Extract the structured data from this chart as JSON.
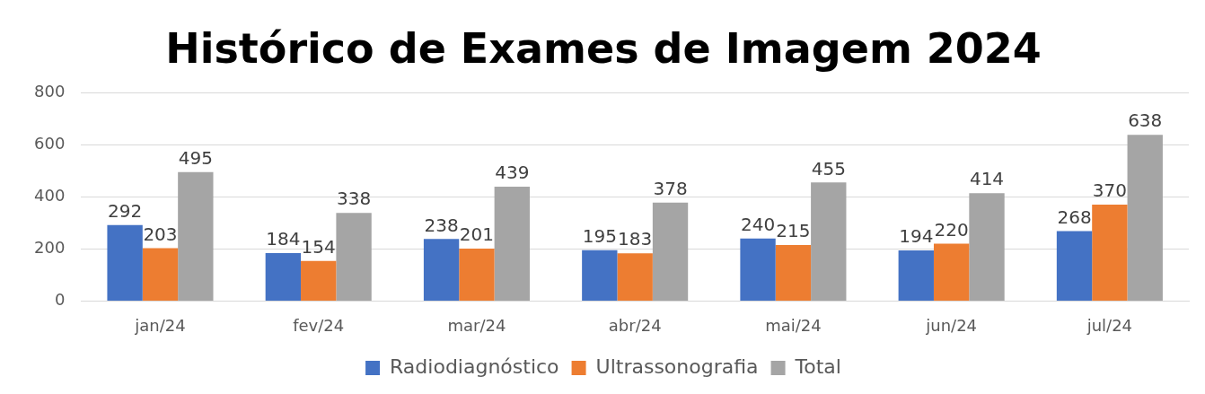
{
  "chart_data": {
    "type": "bar",
    "title": "Histórico de Exames de Imagem 2024",
    "categories": [
      "jan/24",
      "fev/24",
      "mar/24",
      "abr/24",
      "mai/24",
      "jun/24",
      "jul/24"
    ],
    "series": [
      {
        "name": "Radiodiagnóstico",
        "color": "#4472c4",
        "values": [
          292,
          184,
          238,
          195,
          240,
          194,
          268
        ]
      },
      {
        "name": "Ultrassonografia",
        "color": "#ed7d31",
        "values": [
          203,
          154,
          201,
          183,
          215,
          220,
          370
        ]
      },
      {
        "name": "Total",
        "color": "#a5a5a5",
        "values": [
          495,
          338,
          439,
          378,
          455,
          414,
          638
        ]
      }
    ],
    "ylim": [
      0,
      800
    ],
    "yticks": [
      0,
      200,
      400,
      600,
      800
    ],
    "grid": "y",
    "legend": "bottom",
    "data_labels": true
  }
}
